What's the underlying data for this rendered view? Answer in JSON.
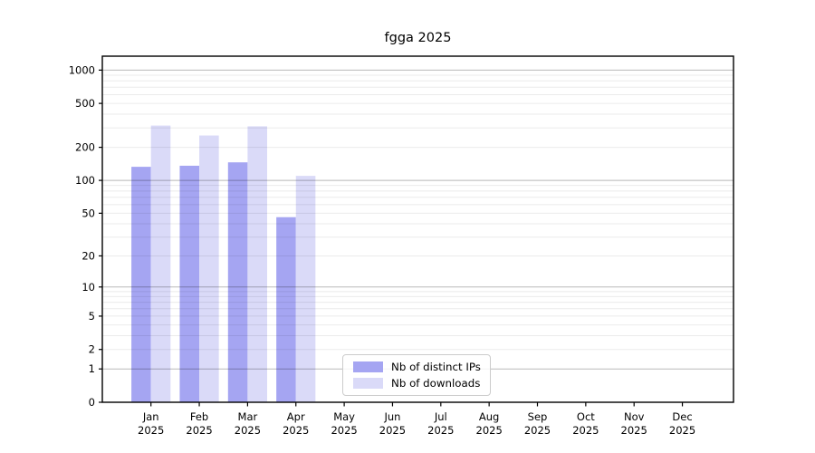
{
  "chart_data": {
    "type": "bar",
    "title": "fgga 2025",
    "categories": [
      "Jan",
      "Feb",
      "Mar",
      "Apr",
      "May",
      "Jun",
      "Jul",
      "Aug",
      "Sep",
      "Oct",
      "Nov",
      "Dec"
    ],
    "x_tick_second_line": "2025",
    "series": [
      {
        "name": "Nb of distinct IPs",
        "color": "#a5a5f2",
        "values": [
          133,
          136,
          146,
          46,
          0,
          0,
          0,
          0,
          0,
          0,
          0,
          0
        ]
      },
      {
        "name": "Nb of downloads",
        "color": "#dadaf8",
        "values": [
          315,
          256,
          310,
          110,
          0,
          0,
          0,
          0,
          0,
          0,
          0,
          0
        ]
      }
    ],
    "yticks": [
      0,
      1,
      2,
      5,
      10,
      20,
      50,
      100,
      200,
      500,
      1000
    ],
    "scale": "log10(1+v)",
    "ylim": [
      0,
      1337
    ],
    "grid": true,
    "grid_major_values": [
      1,
      10,
      100,
      1000
    ],
    "legend_position": "lower center",
    "axis_color": "#000000",
    "grid_major_color": "rgba(0,0,0,0.28)",
    "grid_minor_color": "rgba(0,0,0,0.08)"
  }
}
